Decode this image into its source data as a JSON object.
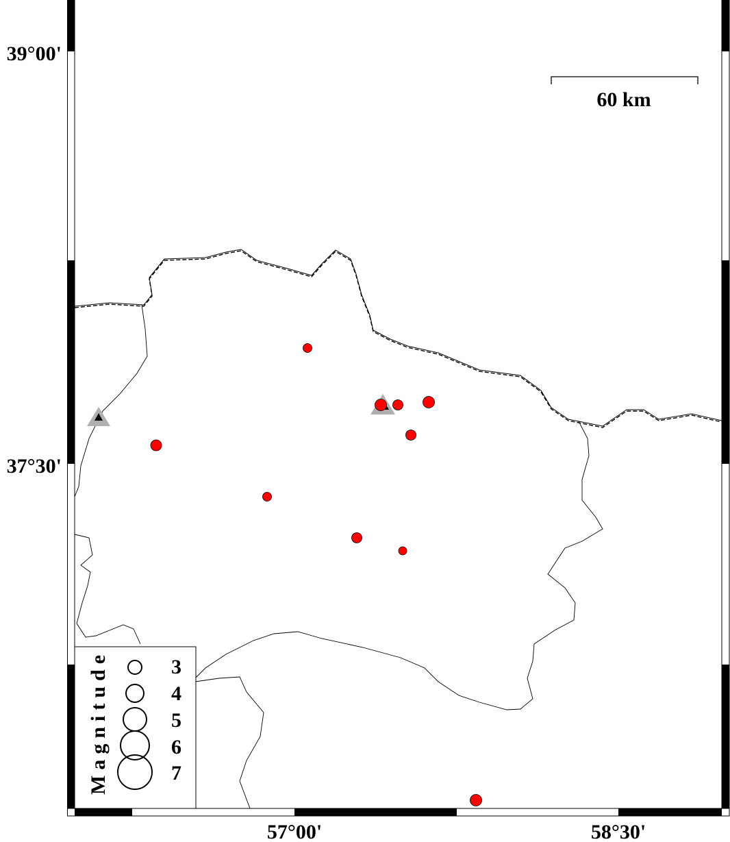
{
  "map": {
    "frame_labels": {
      "lat": [
        "39°00'",
        "37°30'"
      ],
      "lon": [
        "57°00'",
        "58°30'"
      ]
    },
    "scale_bar": {
      "label": "60 km"
    },
    "legend": {
      "title": "Magnitude",
      "items": [
        {
          "label": "3",
          "magnitude": 3
        },
        {
          "label": "4",
          "magnitude": 4
        },
        {
          "label": "5",
          "magnitude": 5
        },
        {
          "label": "6",
          "magnitude": 6
        },
        {
          "label": "7",
          "magnitude": 7
        }
      ]
    },
    "colors": {
      "event_fill": "#ff0000",
      "station_fill": "#b0b0b0",
      "station_marker": "#000000",
      "border": "#000000"
    },
    "symbols": {
      "events": "red-circle",
      "stations": "gray-triangle"
    }
  }
}
